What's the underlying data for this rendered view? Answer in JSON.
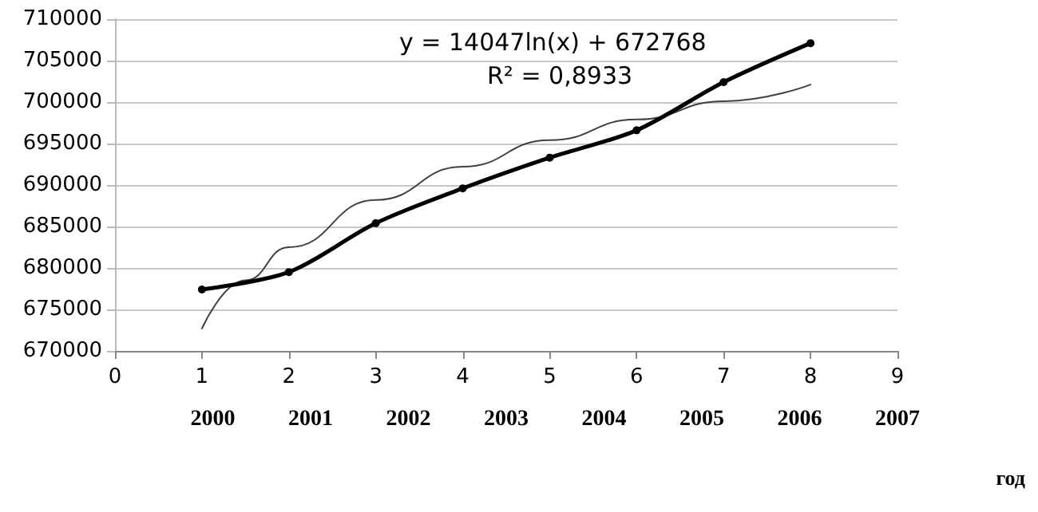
{
  "chart_data": {
    "type": "line",
    "xlabel": null,
    "x2label": "год",
    "annotations": [
      "y = 14047ln(x) + 672768",
      "R² = 0,8933"
    ],
    "series": [
      {
        "color": "#000000",
        "x": [
          1,
          2,
          3,
          4,
          5,
          6,
          7,
          8
        ],
        "values": [
          677400,
          679500,
          685400,
          689600,
          693300,
          696600,
          702400,
          707100
        ],
        "marker": "circle"
      },
      {
        "type": "line",
        "color": "#404040",
        "x": [
          1,
          1.5,
          2,
          3,
          4,
          5,
          6,
          7,
          8
        ],
        "values": [
          672700,
          678500,
          682500,
          688200,
          692200,
          695400,
          697900,
          700100,
          702100
        ],
        "marker": "none"
      }
    ],
    "xlim": [
      0,
      9
    ],
    "xticks": [
      0,
      1,
      2,
      3,
      4,
      5,
      6,
      7,
      8,
      9
    ],
    "x2lim": [
      1999,
      2007
    ],
    "x2ticks": [
      2000,
      2001,
      2002,
      2003,
      2004,
      2005,
      2006,
      2007
    ],
    "ylim": [
      670000,
      710000
    ],
    "yticks": [
      670000,
      675000,
      680000,
      685000,
      690000,
      695000,
      700000,
      705000,
      710000
    ],
    "grid": "y"
  }
}
